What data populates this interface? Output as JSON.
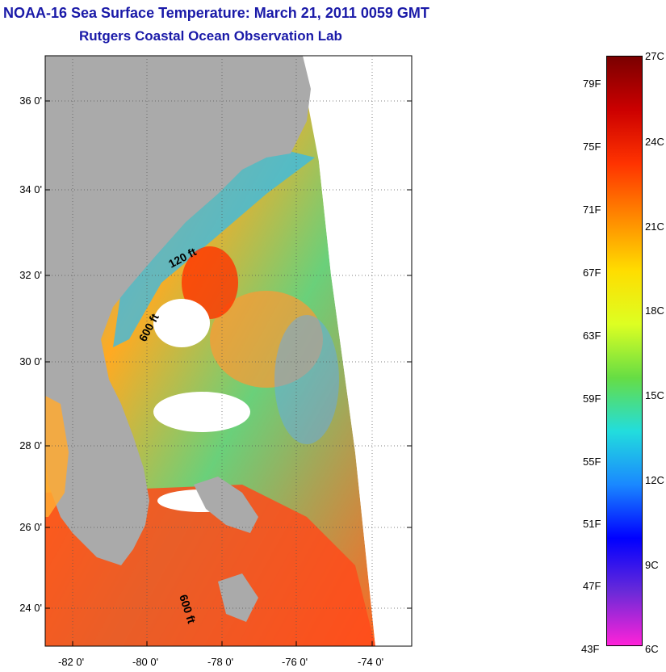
{
  "title": "NOAA-16 Sea Surface Temperature:  March 21, 2011 0059 GMT",
  "subtitle": "Rutgers Coastal Ocean Observation Lab",
  "lat_ticks": [
    "36 0'",
    "34 0'",
    "32 0'",
    "30 0'",
    "28 0'",
    "26 0'",
    "24 0'"
  ],
  "lon_ticks": [
    "-82 0'",
    "-80 0'",
    "-78 0'",
    "-76 0'",
    "-74 0'"
  ],
  "isobath_labels": [
    "120 ft",
    "600 ft",
    "600 ft"
  ],
  "colorbar": {
    "fahrenheit": [
      "79F",
      "75F",
      "71F",
      "67F",
      "63F",
      "59F",
      "55F",
      "51F",
      "47F",
      "43F"
    ],
    "celsius": [
      "27C",
      "24C",
      "21C",
      "18C",
      "15C",
      "12C",
      "9C",
      "6C"
    ],
    "colors": [
      "#7a0000",
      "#cc0000",
      "#ff3300",
      "#ff8800",
      "#ffdd00",
      "#ddff22",
      "#66dd44",
      "#22dddd",
      "#1a88ff",
      "#0000ff",
      "#6a2ad8",
      "#ff22d8"
    ]
  },
  "map_colors": {
    "land": "#aaaaaa",
    "cloud": "#ffffff"
  }
}
